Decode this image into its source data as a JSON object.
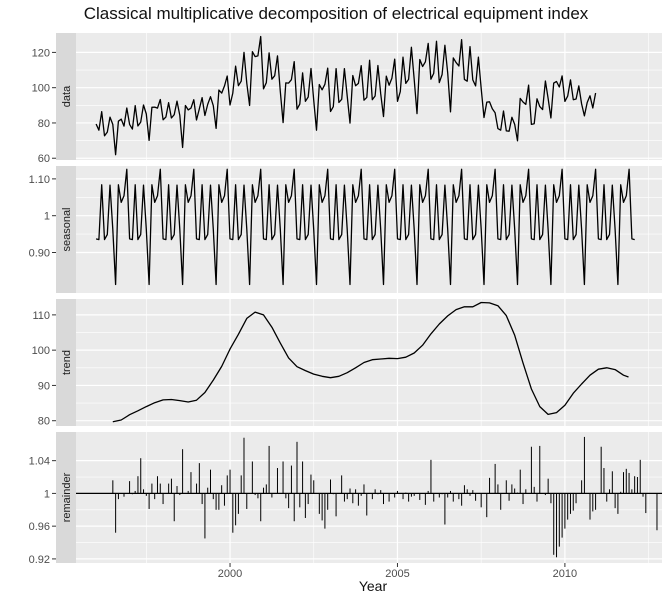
{
  "chart_data": {
    "type": "line",
    "title": "Classical multiplicative decomposition of electrical equipment index",
    "xlabel": "Year",
    "xlim": [
      1995.4,
      2012.9
    ],
    "x_ticks": [
      2000,
      2005,
      2010
    ],
    "colors": {
      "panel_bg": "#ebebeb",
      "strip_bg": "#d9d9d9",
      "line": "#000000",
      "grid": "#ffffff"
    },
    "panels": [
      {
        "name": "data",
        "type": "line",
        "ylim": [
          59,
          131
        ],
        "yticks": [
          60,
          80,
          100,
          120
        ],
        "x_start": 1996.0,
        "x_step": 0.083333,
        "values": [
          79.4,
          75.9,
          86.4,
          72.7,
          74.8,
          83.3,
          79.2,
          62.0,
          81.0,
          82.2,
          78.2,
          88.5,
          79.2,
          76.5,
          89.8,
          78.3,
          80.5,
          90.2,
          85.1,
          70.1,
          88.9,
          89.0,
          88.4,
          93.3,
          81.8,
          83.4,
          91.5,
          82.8,
          84.7,
          92.4,
          84.3,
          66.1,
          89.9,
          87.4,
          88.4,
          93.2,
          81.7,
          87.9,
          94.4,
          84.2,
          90.5,
          94.9,
          89.8,
          76.9,
          98.7,
          96.9,
          101.0,
          106.6,
          90.2,
          96.9,
          112.2,
          101.1,
          103.7,
          120.0,
          102.5,
          89.9,
          120.4,
          117.6,
          118.0,
          129.0,
          99.3,
          102.8,
          119.7,
          104.8,
          106.8,
          118.0,
          97.9,
          80.2,
          102.7,
          102.6,
          104.5,
          114.8,
          87.8,
          90.7,
          108.4,
          92.3,
          94.7,
          110.9,
          93.1,
          75.9,
          101.8,
          98.8,
          101.9,
          111.1,
          86.5,
          89.2,
          110.8,
          91.6,
          93.4,
          110.8,
          95.3,
          79.9,
          106.9,
          101.1,
          102.4,
          112.5,
          92.9,
          94.5,
          115.5,
          93.2,
          95.3,
          112.6,
          96.6,
          83.6,
          106.5,
          101.4,
          105.4,
          116.2,
          92.3,
          97.8,
          117.3,
          102.4,
          104.7,
          122.9,
          104.7,
          85.3,
          116.0,
          112.0,
          114.7,
          125.1,
          104.8,
          108.1,
          126.3,
          102.9,
          107.5,
          124.0,
          108.4,
          86.3,
          116.9,
          114.2,
          112.3,
          127.2,
          104.7,
          103.7,
          123.3,
          104.4,
          101.0,
          117.3,
          99.4,
          83.1,
          91.8,
          92.0,
          88.0,
          85.8,
          76.8,
          75.9,
          86.8,
          75.5,
          75.3,
          83.2,
          79.2,
          69.9,
          93.9,
          91.9,
          90.5,
          101.4,
          79.2,
          79.6,
          93.7,
          89.3,
          87.6,
          103.8,
          94.0,
          82.8,
          102.6,
          103.5,
          100.4,
          106.7,
          92.2,
          95.2,
          104.4,
          93.2,
          93.6,
          101.0,
          90.8,
          84.0,
          91.6,
          95.4,
          88.5,
          97.0
        ]
      },
      {
        "name": "seasonal",
        "type": "line",
        "ylim": [
          0.79,
          1.135
        ],
        "yticks": [
          0.9,
          1.0,
          1.1
        ],
        "x_start": 1996.0,
        "x_step": 0.083333,
        "repeat_years": 16.2,
        "pattern": [
          0.937,
          0.935,
          1.084,
          0.935,
          0.949,
          1.083,
          0.963,
          0.813,
          1.084,
          1.036,
          1.054,
          1.126
        ]
      },
      {
        "name": "trend",
        "type": "line",
        "ylim": [
          78.5,
          114.5
        ],
        "yticks": [
          80,
          90,
          100,
          110
        ],
        "points": [
          [
            1996.5,
            79.7
          ],
          [
            1996.75,
            80.2
          ],
          [
            1997.0,
            81.7
          ],
          [
            1997.25,
            82.8
          ],
          [
            1997.5,
            84.0
          ],
          [
            1997.75,
            85.1
          ],
          [
            1998.0,
            85.9
          ],
          [
            1998.25,
            86.0
          ],
          [
            1998.5,
            85.7
          ],
          [
            1998.75,
            85.3
          ],
          [
            1999.0,
            85.8
          ],
          [
            1999.25,
            88.0
          ],
          [
            1999.5,
            91.5
          ],
          [
            1999.75,
            95.4
          ],
          [
            2000.0,
            100.3
          ],
          [
            2000.25,
            104.5
          ],
          [
            2000.5,
            109.0
          ],
          [
            2000.75,
            110.8
          ],
          [
            2001.0,
            110.0
          ],
          [
            2001.25,
            106.5
          ],
          [
            2001.5,
            102.0
          ],
          [
            2001.75,
            97.8
          ],
          [
            2002.0,
            95.3
          ],
          [
            2002.25,
            94.2
          ],
          [
            2002.5,
            93.2
          ],
          [
            2002.75,
            92.6
          ],
          [
            2003.0,
            92.2
          ],
          [
            2003.25,
            92.6
          ],
          [
            2003.5,
            93.6
          ],
          [
            2003.75,
            95.0
          ],
          [
            2004.0,
            96.5
          ],
          [
            2004.25,
            97.3
          ],
          [
            2004.5,
            97.5
          ],
          [
            2004.75,
            97.7
          ],
          [
            2005.0,
            97.6
          ],
          [
            2005.25,
            98.0
          ],
          [
            2005.5,
            99.2
          ],
          [
            2005.75,
            101.4
          ],
          [
            2006.0,
            104.6
          ],
          [
            2006.25,
            107.4
          ],
          [
            2006.5,
            109.7
          ],
          [
            2006.75,
            111.5
          ],
          [
            2007.0,
            112.3
          ],
          [
            2007.25,
            112.3
          ],
          [
            2007.5,
            113.5
          ],
          [
            2007.75,
            113.4
          ],
          [
            2008.0,
            112.6
          ],
          [
            2008.25,
            109.8
          ],
          [
            2008.5,
            104.2
          ],
          [
            2008.75,
            96.4
          ],
          [
            2009.0,
            89.0
          ],
          [
            2009.25,
            84.0
          ],
          [
            2009.5,
            81.8
          ],
          [
            2009.75,
            82.3
          ],
          [
            2010.0,
            84.4
          ],
          [
            2010.25,
            87.8
          ],
          [
            2010.5,
            90.4
          ],
          [
            2010.75,
            92.9
          ],
          [
            2011.0,
            94.6
          ],
          [
            2011.25,
            95.0
          ],
          [
            2011.5,
            94.5
          ],
          [
            2011.75,
            92.9
          ],
          [
            2011.9,
            92.4
          ]
        ]
      },
      {
        "name": "remainder",
        "type": "bar",
        "ylim": [
          0.915,
          1.075
        ],
        "yticks": [
          0.92,
          0.96,
          1.0,
          1.04
        ],
        "baseline": 1.0,
        "x_start": 1996.5,
        "x_step": 0.083333,
        "values": [
          1.016,
          0.952,
          0.993,
          1.0,
          0.996,
          1.0,
          1.015,
          0.999,
          1.003,
          1.021,
          1.043,
          1.005,
          0.997,
          0.981,
          1.012,
          0.993,
          1.021,
          1.012,
          0.987,
          1.0,
          1.012,
          1.018,
          0.966,
          1.009,
          0.998,
          1.054,
          1.0,
          1.003,
          1.026,
          1.0,
          1.012,
          1.037,
          0.987,
          0.945,
          1.007,
          1.029,
          0.993,
          0.98,
          0.98,
          1.01,
          0.985,
          1.022,
          1.029,
          0.952,
          0.961,
          0.975,
          1.022,
          1.068,
          0.981,
          1.0,
          1.039,
          0.998,
          0.994,
          0.966,
          1.007,
          1.011,
          1.058,
          0.995,
          1.0,
          1.031,
          1.0,
          1.039,
          0.994,
          0.982,
          1.034,
          0.966,
          1.063,
          0.983,
          1.039,
          0.97,
          0.987,
          1.023,
          1.016,
          1.0,
          0.975,
          0.967,
          0.957,
          0.98,
          1.017,
          0.999,
          0.972,
          1.0,
          1.022,
          0.99,
          0.993,
          1.006,
          0.988,
          1.005,
          0.985,
          0.997,
          1.011,
          0.973,
          1.0,
          0.993,
          1.005,
          0.999,
          1.004,
          0.987,
          1.0,
          0.99,
          1.0,
          0.995,
          1.003,
          1.0,
          0.993,
          1.001,
          0.99,
          0.996,
          0.997,
          1.0,
          0.992,
          1.0,
          0.986,
          1.003,
          1.041,
          0.99,
          1.0,
          0.995,
          0.999,
          0.962,
          0.995,
          1.003,
          0.99,
          1.0,
          0.993,
          0.985,
          1.01,
          1.005,
          0.997,
          1.004,
          0.991,
          1.0,
          0.983,
          1.0,
          0.971,
          1.019,
          1.0,
          1.036,
          1.011,
          0.98,
          1.0,
          1.016,
          0.991,
          1.011,
          1.006,
          1.001,
          1.029,
          0.987,
          1.005,
          1.0,
          1.057,
          1.008,
          0.99,
          1.058,
          1.0,
          0.998,
          1.018,
          0.988,
          0.925,
          0.922,
          0.935,
          0.946,
          0.957,
          0.968,
          0.975,
          0.979,
          0.988,
          1.0,
          1.016,
          1.069,
          1.0,
          0.968,
          0.978,
          0.98,
          1.0,
          1.057,
          1.031,
          0.99,
          1.005,
          1.027,
          0.982,
          0.975,
          1.002,
          1.026,
          1.03,
          1.025,
          1.005,
          1.021,
          1.02,
          1.041,
          0.996,
          0.976,
          1.0,
          1.0,
          1.0,
          0.955
        ]
      }
    ]
  }
}
